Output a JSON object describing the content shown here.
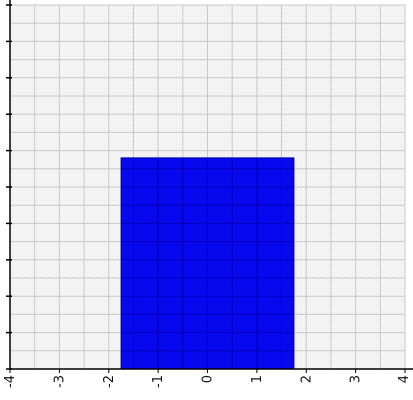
{
  "chart_data": {
    "type": "bar",
    "title": "",
    "xlabel": "",
    "ylabel": "",
    "xlim": [
      -4,
      4
    ],
    "ylim": [
      0,
      10
    ],
    "grid": true,
    "x_ticks": [
      -4,
      -3,
      -2,
      -1,
      0,
      1,
      2,
      3,
      4
    ],
    "x_tick_labels": [
      "-4",
      "-3",
      "-2",
      "-1",
      "0",
      "1",
      "2",
      "3",
      "4"
    ],
    "y_ticks": [
      0,
      1,
      2,
      3,
      4,
      5,
      6,
      7,
      8,
      9,
      10
    ],
    "y_minor_per_major": 2,
    "bars": [
      {
        "x_start": -1.75,
        "x_end": 1.75,
        "value": 5.8
      }
    ],
    "colors": {
      "bar_fill": "#0000ee",
      "bar_edge": "#0000aa",
      "grid": "#c8c8c8",
      "plot_background": "#f4f4f4",
      "axis": "#000000"
    }
  }
}
